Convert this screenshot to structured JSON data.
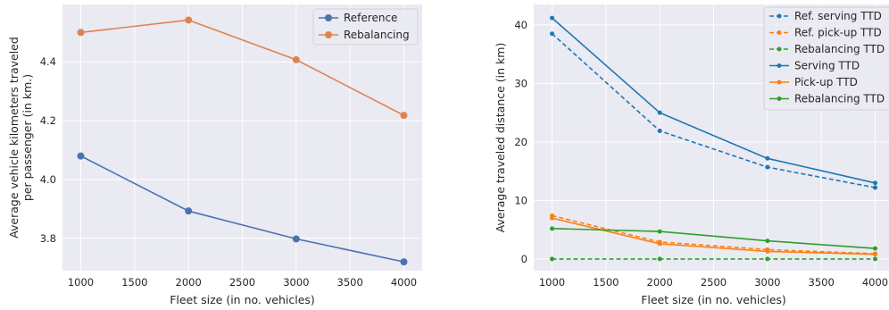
{
  "chart_data": [
    {
      "type": "line",
      "xlabel": "Fleet size (in no. vehicles)",
      "ylabel_lines": [
        "Average vehicle kilometers traveled",
        "per passenger (in km.)"
      ],
      "x": [
        1000,
        2000,
        3000,
        4000
      ],
      "xlim": [
        830,
        4170
      ],
      "ylim": [
        3.69,
        4.595
      ],
      "xticks": [
        1000,
        1500,
        2000,
        2500,
        3000,
        3500,
        4000
      ],
      "yticks": [
        3.8,
        4.0,
        4.2,
        4.4
      ],
      "ytick_labels": [
        "3.8",
        "4.0",
        "4.2",
        "4.4"
      ],
      "grid": true,
      "legend_position": "top-right",
      "series": [
        {
          "name": "Reference",
          "values": [
            4.08,
            3.893,
            3.798,
            3.72
          ],
          "color": "#4c72b0",
          "style": "solid",
          "marker": "circle"
        },
        {
          "name": "Rebalancing",
          "values": [
            4.5,
            4.542,
            4.407,
            4.218
          ],
          "color": "#dd8452",
          "style": "solid",
          "marker": "circle"
        }
      ]
    },
    {
      "type": "line",
      "xlabel": "Fleet size (in no. vehicles)",
      "ylabel_lines": [
        "Average traveled distance (in km)"
      ],
      "x": [
        1000,
        2000,
        3000,
        4000
      ],
      "xlim": [
        830,
        4170
      ],
      "ylim": [
        -2,
        43.5
      ],
      "xticks": [
        1000,
        1500,
        2000,
        2500,
        3000,
        3500,
        4000
      ],
      "yticks": [
        0,
        10,
        20,
        30,
        40
      ],
      "ytick_labels": [
        "0",
        "10",
        "20",
        "30",
        "40"
      ],
      "grid": true,
      "legend_position": "top-right",
      "series": [
        {
          "name": "Ref. serving TTD",
          "values": [
            38.5,
            21.9,
            15.7,
            12.2
          ],
          "color": "#1f77b4",
          "style": "dashed",
          "marker": "dot"
        },
        {
          "name": "Ref. pick-up TTD",
          "values": [
            7.4,
            2.9,
            1.6,
            0.9
          ],
          "color": "#ff7f0e",
          "style": "dashed",
          "marker": "dot"
        },
        {
          "name": "Rebalancing TTD",
          "values": [
            0.0,
            0.0,
            0.0,
            0.0
          ],
          "color": "#2ca02c",
          "style": "dashed",
          "marker": "dot"
        },
        {
          "name": "Serving TTD",
          "values": [
            41.2,
            25.0,
            17.2,
            13.0
          ],
          "color": "#1f77b4",
          "style": "solid",
          "marker": "dot"
        },
        {
          "name": "Pick-up TTD",
          "values": [
            7.0,
            2.6,
            1.3,
            0.8
          ],
          "color": "#ff7f0e",
          "style": "solid",
          "marker": "dot"
        },
        {
          "name": "Rebalancing TTD",
          "values": [
            5.2,
            4.7,
            3.1,
            1.8
          ],
          "color": "#2ca02c",
          "style": "solid",
          "marker": "dot"
        }
      ]
    }
  ]
}
